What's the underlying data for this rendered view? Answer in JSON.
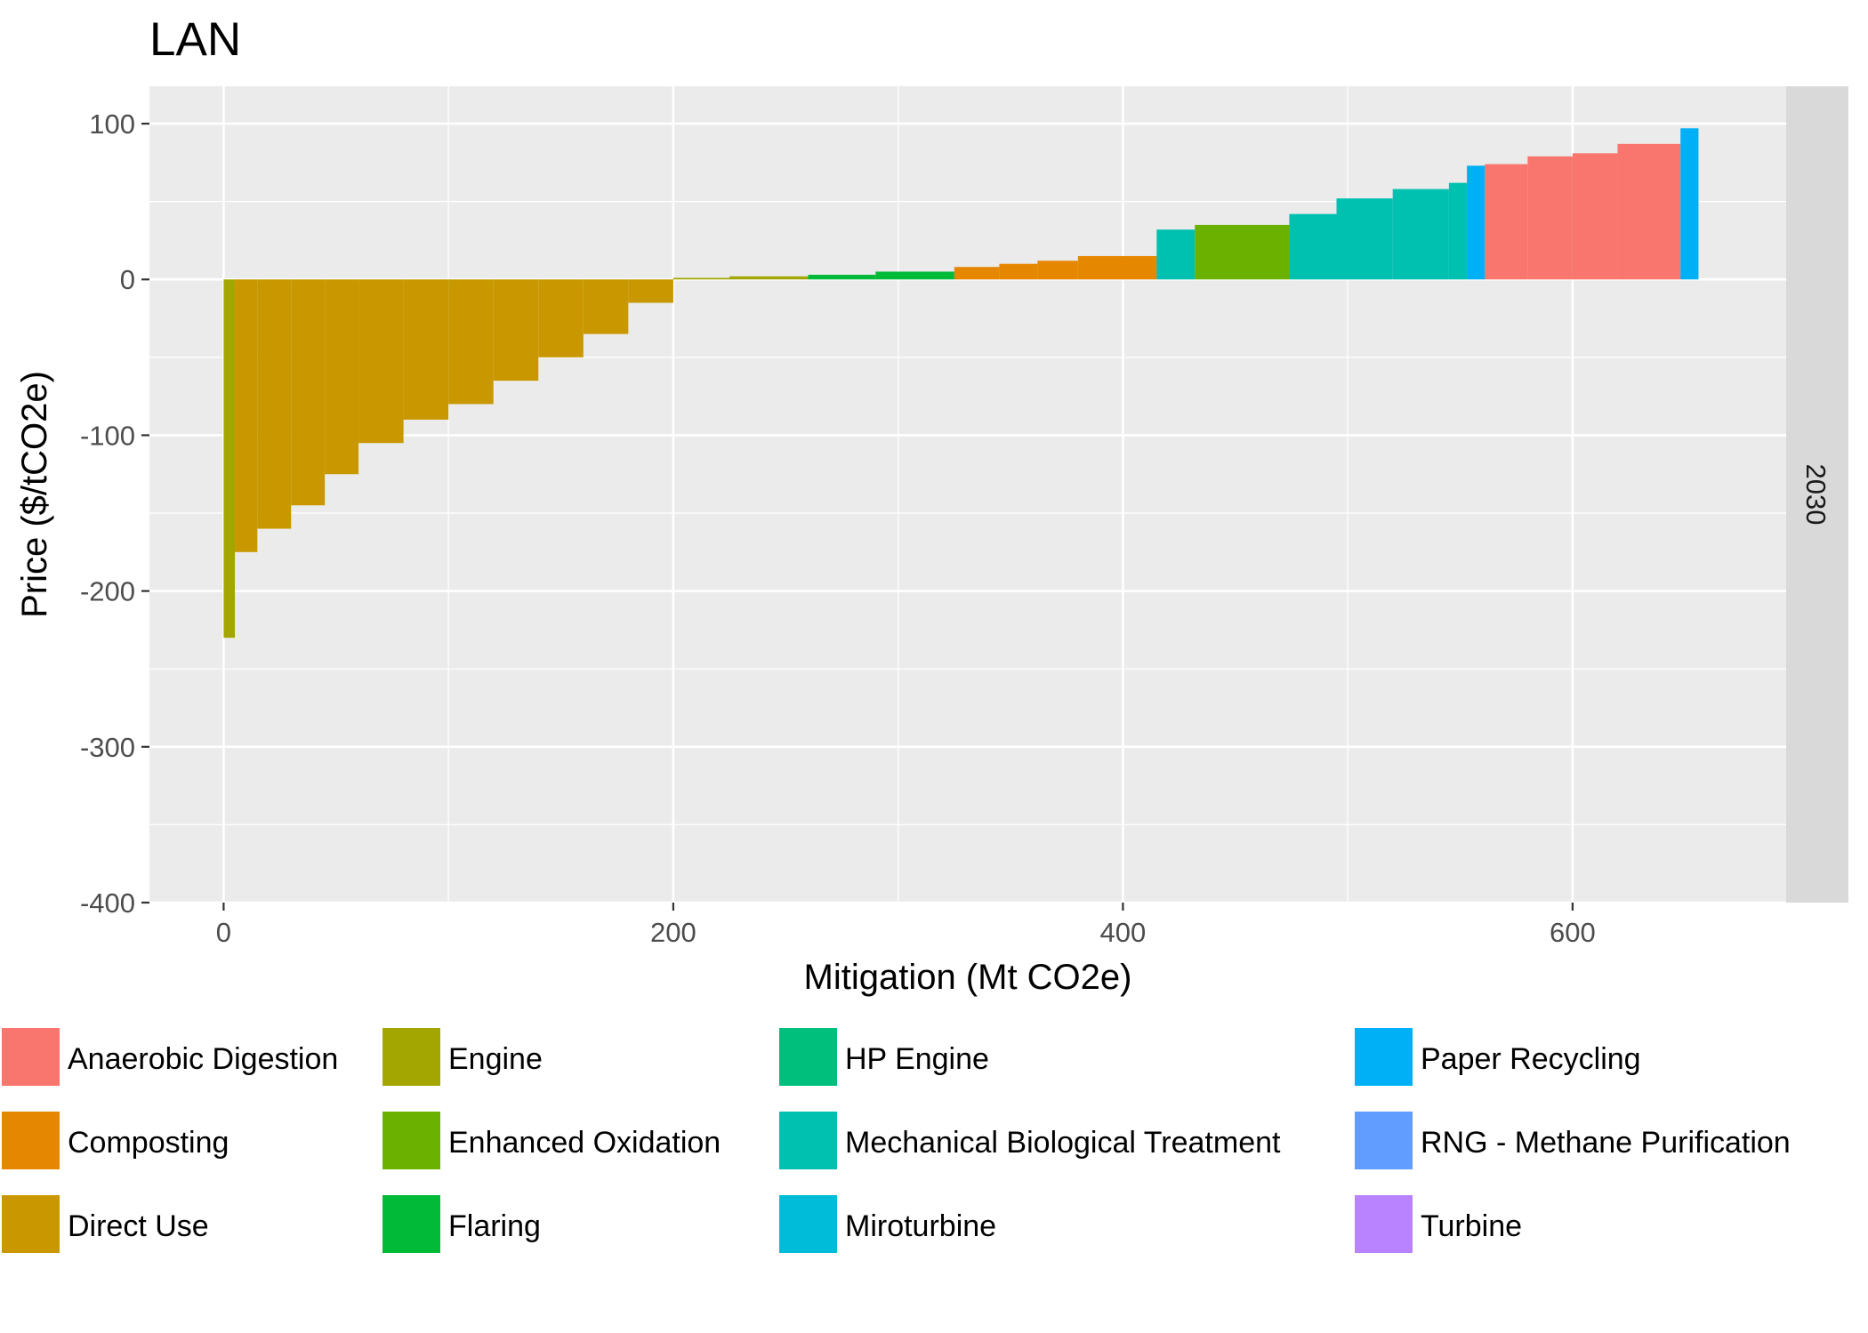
{
  "chart_data": {
    "type": "bar",
    "title": "LAN",
    "xlabel": "Mitigation (Mt CO2e)",
    "ylabel": "Price ($/tCO2e)",
    "facet_label": "2030",
    "xlim": [
      -33,
      695
    ],
    "ylim": [
      -400,
      124
    ],
    "x_ticks": [
      0,
      200,
      400,
      600
    ],
    "x_tick_labels": [
      "0",
      "200",
      "400",
      "600"
    ],
    "y_ticks": [
      100,
      0,
      -100,
      -200,
      -300,
      -400
    ],
    "y_tick_labels": [
      "100",
      "0",
      "-100",
      "-200",
      "-300",
      "-400"
    ],
    "grid": true,
    "legend_position": "bottom",
    "legend": [
      {
        "name": "Anaerobic Digestion",
        "color": "#F8766D"
      },
      {
        "name": "Composting",
        "color": "#E58700"
      },
      {
        "name": "Direct Use",
        "color": "#C99800"
      },
      {
        "name": "Engine",
        "color": "#A3A500"
      },
      {
        "name": "Enhanced Oxidation",
        "color": "#6BB100"
      },
      {
        "name": "Flaring",
        "color": "#00BA38"
      },
      {
        "name": "HP Engine",
        "color": "#00BF7D"
      },
      {
        "name": "Mechanical Biological Treatment",
        "color": "#00C0AF"
      },
      {
        "name": "Miroturbine",
        "color": "#00BCD8"
      },
      {
        "name": "Paper Recycling",
        "color": "#00B0F6"
      },
      {
        "name": "RNG - Methane Purification",
        "color": "#619CFF"
      },
      {
        "name": "Turbine",
        "color": "#B983FF"
      }
    ],
    "series": [
      {
        "name": "Anaerobic Digestion",
        "color": "#F8766D",
        "bars": [
          [
            561,
            580,
            74
          ],
          [
            580,
            600,
            79
          ],
          [
            600,
            620,
            81
          ],
          [
            620,
            648,
            87
          ]
        ]
      },
      {
        "name": "Composting",
        "color": "#E58700",
        "bars": [
          [
            325,
            345,
            8
          ],
          [
            345,
            362,
            10
          ],
          [
            362,
            380,
            12
          ],
          [
            380,
            415,
            15
          ]
        ]
      },
      {
        "name": "Direct Use",
        "color": "#C99800",
        "bars": [
          [
            5,
            15,
            -175
          ],
          [
            15,
            30,
            -160
          ],
          [
            30,
            45,
            -145
          ],
          [
            45,
            60,
            -125
          ],
          [
            60,
            80,
            -105
          ],
          [
            80,
            100,
            -90
          ],
          [
            100,
            120,
            -80
          ],
          [
            120,
            140,
            -65
          ],
          [
            140,
            160,
            -50
          ],
          [
            160,
            180,
            -35
          ],
          [
            180,
            200,
            -15
          ]
        ]
      },
      {
        "name": "Engine",
        "color": "#A3A500",
        "bars": [
          [
            0,
            5,
            -230
          ],
          [
            200,
            225,
            1
          ],
          [
            225,
            260,
            2
          ]
        ]
      },
      {
        "name": "Enhanced Oxidation",
        "color": "#6BB100",
        "bars": [
          [
            432,
            474,
            35
          ]
        ]
      },
      {
        "name": "Flaring",
        "color": "#00BA38",
        "bars": [
          [
            260,
            290,
            3
          ],
          [
            290,
            325,
            5
          ]
        ]
      },
      {
        "name": "HP Engine",
        "color": "#00BF7D",
        "bars": []
      },
      {
        "name": "Mechanical Biological Treatment",
        "color": "#00C0AF",
        "bars": [
          [
            415,
            432,
            32
          ],
          [
            474,
            495,
            42
          ],
          [
            495,
            520,
            52
          ],
          [
            520,
            545,
            58
          ],
          [
            545,
            553,
            62
          ]
        ]
      },
      {
        "name": "Miroturbine",
        "color": "#00BCD8",
        "bars": []
      },
      {
        "name": "Paper Recycling",
        "color": "#00B0F6",
        "bars": [
          [
            553,
            561,
            73
          ],
          [
            648,
            656,
            97
          ]
        ]
      },
      {
        "name": "RNG - Methane Purification",
        "color": "#619CFF",
        "bars": []
      },
      {
        "name": "Turbine",
        "color": "#B983FF",
        "bars": []
      }
    ]
  }
}
